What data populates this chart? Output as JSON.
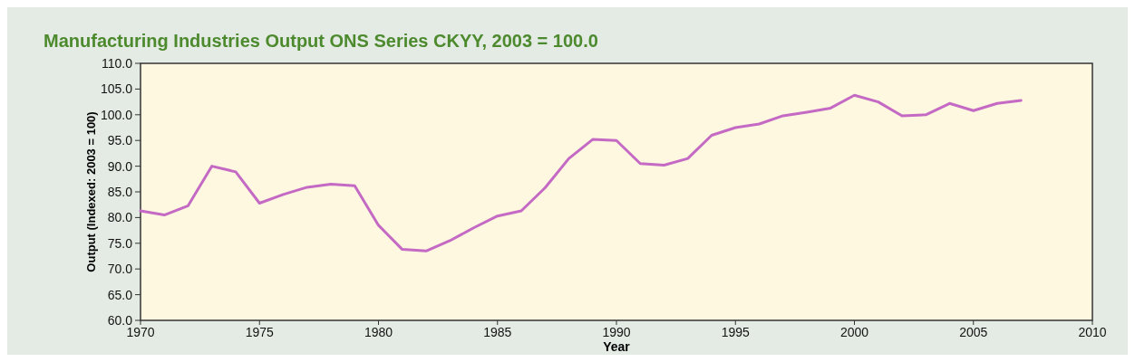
{
  "chart_data": {
    "type": "line",
    "title": "Manufacturing Industries Output ONS Series CKYY, 2003 = 100.0",
    "xlabel": "Year",
    "ylabel": "Output (Indexed: 2003 = 100)",
    "x": [
      1970,
      1971,
      1972,
      1973,
      1974,
      1975,
      1976,
      1977,
      1978,
      1979,
      1980,
      1981,
      1982,
      1983,
      1984,
      1985,
      1986,
      1987,
      1988,
      1989,
      1990,
      1991,
      1992,
      1993,
      1994,
      1995,
      1996,
      1997,
      1998,
      1999,
      2000,
      2001,
      2002,
      2003,
      2004,
      2005,
      2006,
      2007
    ],
    "series": [
      {
        "color": "#c46ac4",
        "values": [
          81.3,
          80.5,
          82.3,
          90.0,
          88.9,
          82.8,
          84.5,
          85.9,
          86.5,
          86.2,
          78.5,
          73.8,
          73.5,
          75.5,
          78.0,
          80.3,
          81.3,
          85.8,
          91.5,
          95.2,
          95.0,
          90.5,
          90.2,
          91.5,
          96.0,
          97.5,
          98.2,
          99.8,
          100.5,
          101.3,
          103.8,
          102.5,
          99.8,
          100.0,
          102.2,
          100.8,
          102.2,
          102.8
        ]
      }
    ],
    "xlim": [
      1970,
      2010
    ],
    "xticks": [
      1970,
      1975,
      1980,
      1985,
      1990,
      1995,
      2000,
      2005,
      2010
    ],
    "ylim": [
      60,
      110
    ],
    "yticks": [
      {
        "value": 60,
        "label": "60.0"
      },
      {
        "value": 65,
        "label": "65.0"
      },
      {
        "value": 70,
        "label": "70.0"
      },
      {
        "value": 75,
        "label": "75.0"
      },
      {
        "value": 80,
        "label": "80.0"
      },
      {
        "value": 85,
        "label": "85.0"
      },
      {
        "value": 90,
        "label": "90.0"
      },
      {
        "value": 95,
        "label": "95.0"
      },
      {
        "value": 100,
        "label": "100.0"
      },
      {
        "value": 105,
        "label": "105.0"
      },
      {
        "value": 110,
        "label": "110.0"
      }
    ],
    "grid": false,
    "marker": "none",
    "line_style": "solid"
  }
}
